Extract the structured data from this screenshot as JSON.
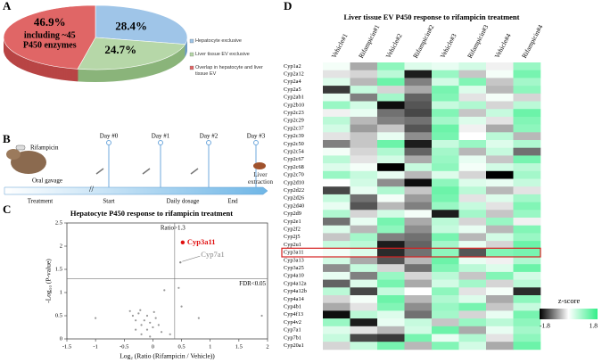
{
  "panels": [
    "A",
    "B",
    "C",
    "D"
  ],
  "timeline": {
    "drug": "Rifampicin",
    "route": "Oral gavage",
    "days": [
      "Day #0",
      "Day #1",
      "Day #2",
      "Day #3"
    ],
    "phases": [
      "Treatment",
      "Start",
      "Daily dosage",
      "End"
    ],
    "endpoint": "Liver extraction"
  },
  "chart_data": [
    {
      "type": "pie",
      "categories": [
        "Hepatocyte exclusive",
        "Liver tissue EV exclusive",
        "Overlap in hepatocyte and liver tissue EV"
      ],
      "values": [
        28.4,
        24.7,
        46.9
      ],
      "value_labels": [
        "28.4%",
        "24.7%",
        "46.9%"
      ],
      "colors": [
        "#9fc5e8",
        "#b6d7a8",
        "#e06666"
      ],
      "side_colors": [
        "#6f9cc4",
        "#8ab47a",
        "#b84545"
      ],
      "annotation": [
        "including ~45",
        "P450 enzymes"
      ]
    },
    {
      "type": "scatter",
      "title": "Hepatocyte P450 response to rifampicin treatment",
      "xlabel": "Log₂ (Ratio (Rifampicin / Vehicle))",
      "ylabel": "-Log₁₀ (P-value)",
      "xlim": [
        -1.5,
        2
      ],
      "xticks": [
        -1.5,
        -1,
        -0.5,
        0,
        0.5,
        1,
        1.5,
        2
      ],
      "ylim": [
        0,
        2.5
      ],
      "yticks": [
        0,
        0.5,
        1,
        1.5,
        2,
        2.5
      ],
      "color": "#999999",
      "x": [
        -1.0,
        -0.4,
        -0.35,
        -0.3,
        -0.25,
        -0.2,
        -0.15,
        -0.1,
        -0.05,
        0,
        0.05,
        0.1,
        0.15,
        -0.3,
        -0.2,
        -0.1,
        0.45,
        0.2,
        0.5,
        0.8,
        1.9,
        -0.05,
        0.3,
        -0.22,
        0.02
      ],
      "values": [
        0.45,
        0.6,
        0.5,
        0.4,
        0.55,
        0.3,
        0.4,
        0.2,
        0.35,
        0.25,
        0.45,
        0.3,
        0.15,
        0.2,
        0.1,
        0.5,
        1.1,
        1.05,
        0.7,
        0.45,
        0.5,
        0.05,
        0.1,
        0.62,
        0.58
      ],
      "labeled_points": [
        {
          "name": "Cyp3a11",
          "x": 0.52,
          "y": 2.08,
          "color": "#e01010"
        },
        {
          "name": "Cyp7a1",
          "x": 0.48,
          "y": 1.65,
          "color": "#888888"
        }
      ],
      "reference_lines": [
        {
          "axis": "x",
          "value": 0.38,
          "label": "Ratio>1.3"
        },
        {
          "axis": "y",
          "value": 1.3,
          "label": "FDR<0.05"
        }
      ]
    },
    {
      "type": "heatmap",
      "title": "Liver tissue EV P450 response to rifampicin treatment",
      "columns": [
        "Vehicle#1",
        "Rifampicin#1",
        "Vehicle#2",
        "Rifampicin#2",
        "Vehicle#3",
        "Rifampicin#3",
        "Vehicle#4",
        "Rifampicin#4"
      ],
      "rows": [
        "Cyp1a2",
        "Cyp2a12",
        "Cyp2a4",
        "Cyp2a5",
        "Cyp2ab1",
        "Cyp2b10",
        "Cyp2c23",
        "Cyp2c29",
        "Cyp2c37",
        "Cyp2c39",
        "Cyp2c50",
        "Cyp2c54",
        "Cyp2c67",
        "Cyp2c68",
        "Cyp2c70",
        "Cyp2d10",
        "Cyp2d22",
        "Cyp2d26",
        "Cyp2d40",
        "Cyp2d9",
        "Cyp2e1",
        "Cyp2f2",
        "Cyp2j5",
        "Cyp2u1",
        "Cyp3a11",
        "Cyp3a13",
        "Cyp3a25",
        "Cyp4a10",
        "Cyp4a12a",
        "Cyp4a12b",
        "Cyp4a14",
        "Cyp4b1",
        "Cyp4f13",
        "Cyp4v2",
        "Cyp7a1",
        "Cyp7b1",
        "Cyp20a1"
      ],
      "values": [
        [
          0.1,
          -0.6,
          1.0,
          0.3,
          0.2,
          0.4,
          -0.1,
          0.9
        ],
        [
          -0.2,
          -0.3,
          0.6,
          -1.6,
          0.9,
          -0.4,
          0.1,
          1.2
        ],
        [
          0.3,
          -0.5,
          1.3,
          -0.9,
          0.4,
          1.1,
          -0.4,
          0.8
        ],
        [
          -1.4,
          0.5,
          -0.3,
          -0.6,
          1.2,
          0.3,
          -0.5,
          1.0
        ],
        [
          0.2,
          -0.9,
          0.8,
          -1.1,
          1.1,
          -0.2,
          0.1,
          -0.3
        ],
        [
          0.9,
          0.4,
          -1.7,
          -1.2,
          0.5,
          0.7,
          -0.3,
          0.6
        ],
        [
          -0.1,
          0.2,
          -1.0,
          -1.3,
          1.1,
          -0.4,
          0.5,
          1.3
        ],
        [
          0.6,
          -0.5,
          -0.9,
          -1.0,
          0.8,
          0.3,
          -0.2,
          1.1
        ],
        [
          0.4,
          -0.7,
          -0.4,
          -1.2,
          1.3,
          -0.1,
          -0.6,
          1.0
        ],
        [
          -0.2,
          -0.4,
          0.2,
          -0.8,
          1.2,
          0.0,
          0.6,
          -0.5
        ],
        [
          -0.9,
          -0.4,
          1.3,
          -1.6,
          0.5,
          0.9,
          0.3,
          0.7
        ],
        [
          0.1,
          -0.3,
          0.7,
          -1.1,
          0.8,
          -0.5,
          0.5,
          -1.0
        ],
        [
          0.6,
          -0.2,
          0.4,
          -0.6,
          0.9,
          0.2,
          -0.4,
          1.2
        ],
        [
          0.3,
          0.1,
          -1.8,
          0.5,
          1.0,
          0.1,
          0.4,
          0.6
        ],
        [
          0.9,
          0.5,
          0.2,
          -0.5,
          0.3,
          -0.3,
          -1.8,
          0.8
        ],
        [
          0.0,
          0.4,
          -0.8,
          -1.7,
          1.0,
          0.3,
          0.2,
          0.5
        ],
        [
          -1.3,
          0.2,
          0.7,
          -0.4,
          1.3,
          0.6,
          -0.5,
          -0.2
        ],
        [
          0.5,
          -1.0,
          0.1,
          -0.7,
          1.2,
          -0.2,
          0.3,
          0.8
        ],
        [
          0.2,
          -1.2,
          -0.5,
          -0.9,
          0.9,
          0.5,
          -0.2,
          1.1
        ],
        [
          0.7,
          -0.3,
          0.4,
          0.1,
          -1.6,
          0.8,
          -0.4,
          0.9
        ],
        [
          -1.0,
          0.2,
          1.2,
          -0.6,
          0.6,
          -0.3,
          0.9,
          -0.1
        ],
        [
          0.3,
          -0.5,
          1.0,
          -0.8,
          0.5,
          0.2,
          -0.5,
          1.1
        ],
        [
          -0.4,
          0.8,
          -0.9,
          -1.0,
          1.2,
          -0.5,
          0.4,
          0.9
        ],
        [
          0.5,
          0.6,
          -1.6,
          -1.1,
          0.8,
          0.2,
          -0.3,
          1.3
        ],
        [
          0.1,
          0.3,
          -1.5,
          -1.0,
          1.0,
          -1.2,
          1.1,
          1.2
        ],
        [
          0.4,
          -0.6,
          -1.2,
          -0.5,
          1.3,
          0.2,
          -0.1,
          0.7
        ],
        [
          -0.8,
          0.5,
          -0.3,
          -1.0,
          1.1,
          0.6,
          0.3,
          1.3
        ],
        [
          0.2,
          -0.9,
          0.9,
          -0.3,
          0.6,
          -0.4,
          1.1,
          0.4
        ],
        [
          -1.1,
          0.3,
          1.2,
          -0.6,
          0.4,
          0.8,
          -0.3,
          0.6
        ],
        [
          0.6,
          -1.3,
          0.5,
          0.0,
          1.0,
          -0.2,
          0.1,
          -1.5
        ],
        [
          -0.3,
          0.1,
          1.3,
          -0.5,
          0.7,
          0.3,
          -0.6,
          1.0
        ],
        [
          -0.6,
          -0.2,
          1.1,
          -0.8,
          0.9,
          1.2,
          -0.4,
          0.5
        ],
        [
          -1.7,
          0.6,
          0.3,
          -1.0,
          0.8,
          -0.3,
          0.2,
          1.2
        ],
        [
          0.9,
          -1.6,
          0.2,
          0.5,
          -0.4,
          0.9,
          0.6,
          1.0
        ],
        [
          0.3,
          -0.2,
          -0.5,
          0.4,
          1.3,
          -0.6,
          0.2,
          0.8
        ],
        [
          0.5,
          -1.3,
          -1.4,
          1.2,
          0.2,
          0.7,
          -0.2,
          1.0
        ],
        [
          -0.3,
          0.5,
          1.2,
          -0.5,
          1.1,
          0.4,
          -0.6,
          1.3
        ]
      ],
      "highlight": "Cyp3a11",
      "highlight_color": "#d62020",
      "colormap": [
        "#000000",
        "#ffffff",
        "#33ee88"
      ],
      "zlim": [
        -1.8,
        1.8
      ],
      "legend_title": "z-score"
    }
  ]
}
